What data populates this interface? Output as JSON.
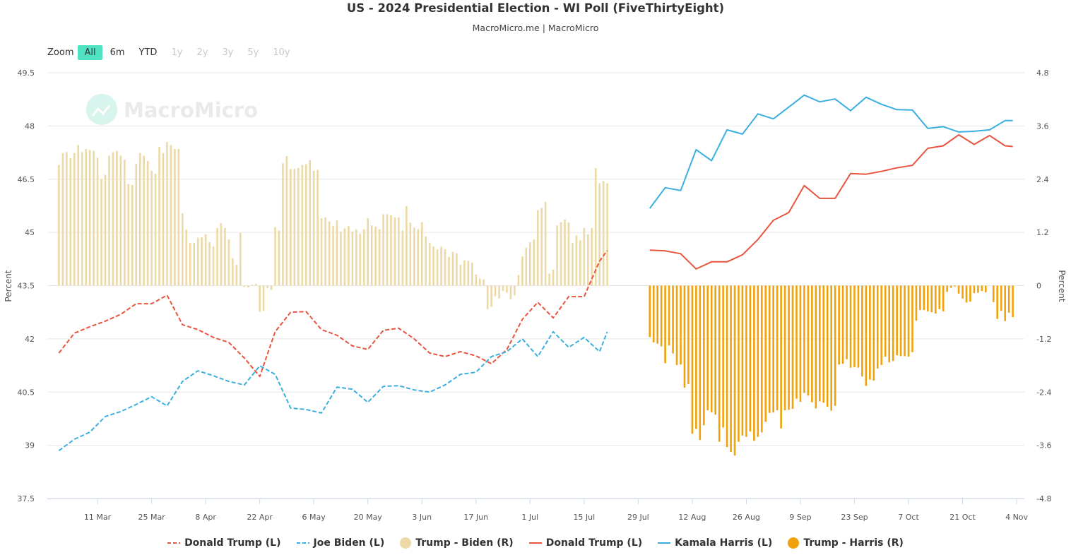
{
  "header": {
    "title": "US - 2024 Presidential Election - WI Poll (FiveThirtyEight)",
    "subtitle": "MacroMicro.me | MacroMicro",
    "watermark": "MacroMicro"
  },
  "zoom": {
    "label": "Zoom",
    "buttons": [
      {
        "label": "All",
        "state": "active"
      },
      {
        "label": "6m",
        "state": "enabled"
      },
      {
        "label": "YTD",
        "state": "enabled"
      },
      {
        "label": "1y",
        "state": "disabled"
      },
      {
        "label": "2y",
        "state": "disabled"
      },
      {
        "label": "3y",
        "state": "disabled"
      },
      {
        "label": "5y",
        "state": "disabled"
      },
      {
        "label": "10y",
        "state": "disabled"
      }
    ]
  },
  "chart_data": {
    "type": "line+bar",
    "title": "US - 2024 Presidential Election - WI Poll (FiveThirtyEight)",
    "grid": true,
    "legend": "bottom",
    "x_axis": {
      "type": "date",
      "range": [
        "2024-02-27",
        "2024-11-06"
      ],
      "ticks": [
        {
          "date": "2024-03-11",
          "label": "11 Mar"
        },
        {
          "date": "2024-03-25",
          "label": "25 Mar"
        },
        {
          "date": "2024-04-08",
          "label": "8 Apr"
        },
        {
          "date": "2024-04-22",
          "label": "22 Apr"
        },
        {
          "date": "2024-05-06",
          "label": "6 May"
        },
        {
          "date": "2024-05-20",
          "label": "20 May"
        },
        {
          "date": "2024-06-03",
          "label": "3 Jun"
        },
        {
          "date": "2024-06-17",
          "label": "17 Jun"
        },
        {
          "date": "2024-07-01",
          "label": "1 Jul"
        },
        {
          "date": "2024-07-15",
          "label": "15 Jul"
        },
        {
          "date": "2024-07-29",
          "label": "29 Jul"
        },
        {
          "date": "2024-08-12",
          "label": "12 Aug"
        },
        {
          "date": "2024-08-26",
          "label": "26 Aug"
        },
        {
          "date": "2024-09-09",
          "label": "9 Sep"
        },
        {
          "date": "2024-09-23",
          "label": "23 Sep"
        },
        {
          "date": "2024-10-07",
          "label": "7 Oct"
        },
        {
          "date": "2024-10-21",
          "label": "21 Oct"
        },
        {
          "date": "2024-11-04",
          "label": "4 Nov"
        }
      ]
    },
    "y_left": {
      "label": "Percent",
      "range": [
        37.5,
        49.5
      ],
      "ticks": [
        "37.5",
        "39",
        "40.5",
        "42",
        "43.5",
        "45",
        "46.5",
        "48",
        "49.5"
      ]
    },
    "y_right": {
      "label": "Percent",
      "range": [
        -4.8,
        4.8
      ],
      "ticks": [
        "-4.8",
        "-3.6",
        "-2.4",
        "-1.2",
        "0",
        "1.2",
        "2.4",
        "3.6",
        "4.8"
      ]
    },
    "series": [
      {
        "name": "Donald Trump (L)",
        "type": "line",
        "style": "dashed",
        "axis": "left",
        "color": "#e8543f",
        "dates": [
          "2024-03-01",
          "2024-03-05",
          "2024-03-09",
          "2024-03-13",
          "2024-03-17",
          "2024-03-21",
          "2024-03-25",
          "2024-03-29",
          "2024-04-02",
          "2024-04-06",
          "2024-04-10",
          "2024-04-14",
          "2024-04-18",
          "2024-04-22",
          "2024-04-26",
          "2024-04-30",
          "2024-05-04",
          "2024-05-08",
          "2024-05-12",
          "2024-05-16",
          "2024-05-20",
          "2024-05-24",
          "2024-05-28",
          "2024-06-01",
          "2024-06-05",
          "2024-06-09",
          "2024-06-13",
          "2024-06-17",
          "2024-06-21",
          "2024-06-25",
          "2024-06-29",
          "2024-07-03",
          "2024-07-07",
          "2024-07-11",
          "2024-07-15",
          "2024-07-19",
          "2024-07-21"
        ],
        "values": [
          41.6,
          42.16,
          42.34,
          42.5,
          42.69,
          42.99,
          42.99,
          43.23,
          42.4,
          42.26,
          42.04,
          41.9,
          41.46,
          40.94,
          42.2,
          42.75,
          42.77,
          42.26,
          42.1,
          41.8,
          41.7,
          42.24,
          42.3,
          42.0,
          41.6,
          41.5,
          41.64,
          41.52,
          41.3,
          41.7,
          42.55,
          43.03,
          42.59,
          43.19,
          43.19,
          44.19,
          44.49
        ]
      },
      {
        "name": "Joe Biden (L)",
        "type": "line",
        "style": "dashed",
        "axis": "left",
        "color": "#3aafdf",
        "dates": [
          "2024-03-01",
          "2024-03-05",
          "2024-03-09",
          "2024-03-13",
          "2024-03-17",
          "2024-03-21",
          "2024-03-25",
          "2024-03-29",
          "2024-04-02",
          "2024-04-06",
          "2024-04-10",
          "2024-04-14",
          "2024-04-18",
          "2024-04-22",
          "2024-04-26",
          "2024-04-30",
          "2024-05-04",
          "2024-05-08",
          "2024-05-12",
          "2024-05-16",
          "2024-05-20",
          "2024-05-24",
          "2024-05-28",
          "2024-06-01",
          "2024-06-05",
          "2024-06-09",
          "2024-06-13",
          "2024-06-17",
          "2024-06-21",
          "2024-06-25",
          "2024-06-29",
          "2024-07-03",
          "2024-07-07",
          "2024-07-11",
          "2024-07-15",
          "2024-07-19",
          "2024-07-21"
        ],
        "values": [
          38.85,
          39.17,
          39.37,
          39.81,
          39.95,
          40.15,
          40.37,
          40.11,
          40.8,
          41.1,
          40.96,
          40.8,
          40.7,
          41.24,
          41.0,
          40.05,
          40.01,
          39.91,
          40.64,
          40.58,
          40.21,
          40.66,
          40.68,
          40.56,
          40.5,
          40.7,
          41.0,
          41.06,
          41.5,
          41.64,
          42.0,
          41.5,
          42.2,
          41.76,
          42.04,
          41.64,
          42.2
        ]
      },
      {
        "name": "Trump - Biden (R)",
        "type": "bar",
        "axis": "right",
        "color": "#ecd9a6",
        "first_date": "2024-03-01",
        "last_date": "2024-07-21",
        "frequency": "daily",
        "values": [
          2.72,
          2.99,
          3.01,
          2.87,
          2.99,
          3.17,
          3.01,
          3.08,
          3.06,
          3.04,
          2.88,
          2.4,
          2.5,
          2.93,
          3.01,
          3.04,
          2.93,
          2.84,
          2.29,
          2.27,
          2.75,
          2.99,
          2.93,
          2.81,
          2.59,
          2.52,
          3.13,
          2.99,
          3.24,
          3.17,
          3.08,
          3.08,
          1.63,
          1.26,
          0.96,
          0.96,
          1.08,
          1.09,
          1.16,
          0.98,
          0.88,
          1.3,
          1.41,
          1.3,
          1.04,
          0.62,
          0.47,
          1.19,
          -0.03,
          -0.04,
          0.02,
          0.04,
          -0.59,
          -0.57,
          -0.06,
          -0.1,
          1.32,
          1.24,
          2.76,
          2.92,
          2.63,
          2.63,
          2.65,
          2.72,
          2.74,
          2.83,
          2.59,
          2.61,
          1.52,
          1.54,
          1.45,
          1.34,
          1.47,
          1.22,
          1.29,
          1.34,
          1.22,
          1.27,
          1.17,
          1.27,
          1.52,
          1.36,
          1.33,
          1.27,
          1.61,
          1.61,
          1.59,
          1.54,
          1.54,
          1.24,
          1.79,
          1.42,
          1.31,
          1.27,
          1.43,
          1.11,
          0.97,
          0.88,
          0.82,
          0.88,
          0.82,
          0.65,
          0.76,
          0.73,
          0.47,
          0.57,
          0.56,
          0.52,
          0.25,
          0.16,
          0.14,
          -0.53,
          -0.48,
          -0.24,
          -0.29,
          -0.12,
          -0.16,
          -0.31,
          -0.22,
          0.24,
          0.66,
          0.86,
          0.98,
          1.04,
          1.7,
          1.75,
          1.89,
          0.27,
          0.36,
          1.36,
          1.43,
          1.49,
          1.42,
          0.96,
          1.13,
          1.02,
          1.3,
          1.16,
          1.3,
          2.65,
          2.31,
          2.36,
          2.31
        ]
      },
      {
        "name": "Donald Trump (L)",
        "type": "line",
        "style": "solid",
        "axis": "left",
        "color": "#e8543f",
        "dates": [
          "2024-08-01",
          "2024-08-05",
          "2024-08-09",
          "2024-08-13",
          "2024-08-17",
          "2024-08-21",
          "2024-08-25",
          "2024-08-29",
          "2024-09-02",
          "2024-09-06",
          "2024-09-10",
          "2024-09-14",
          "2024-09-18",
          "2024-09-22",
          "2024-09-26",
          "2024-09-30",
          "2024-10-04",
          "2024-10-08",
          "2024-10-12",
          "2024-10-16",
          "2024-10-20",
          "2024-10-24",
          "2024-10-28",
          "2024-11-01",
          "2024-11-03"
        ],
        "values": [
          44.5,
          44.48,
          44.4,
          43.97,
          44.17,
          44.17,
          44.37,
          44.8,
          45.34,
          45.56,
          46.32,
          45.96,
          45.96,
          46.66,
          46.64,
          46.72,
          46.82,
          46.89,
          47.37,
          47.44,
          47.75,
          47.48,
          47.73,
          47.44,
          47.42
        ]
      },
      {
        "name": "Kamala Harris (L)",
        "type": "line",
        "style": "solid",
        "axis": "left",
        "color": "#3aafdf",
        "dates": [
          "2024-08-01",
          "2024-08-05",
          "2024-08-09",
          "2024-08-13",
          "2024-08-17",
          "2024-08-21",
          "2024-08-25",
          "2024-08-29",
          "2024-09-02",
          "2024-09-06",
          "2024-09-10",
          "2024-09-14",
          "2024-09-18",
          "2024-09-22",
          "2024-09-26",
          "2024-09-30",
          "2024-10-04",
          "2024-10-08",
          "2024-10-12",
          "2024-10-16",
          "2024-10-20",
          "2024-10-24",
          "2024-10-28",
          "2024-11-01",
          "2024-11-03"
        ],
        "values": [
          45.68,
          46.26,
          46.18,
          47.33,
          47.02,
          47.89,
          47.77,
          48.34,
          48.2,
          48.53,
          48.87,
          48.68,
          48.76,
          48.43,
          48.81,
          48.61,
          48.46,
          48.45,
          47.93,
          47.98,
          47.83,
          47.85,
          47.89,
          48.15,
          48.15
        ]
      },
      {
        "name": "Trump - Harris (R)",
        "type": "bar",
        "axis": "right",
        "color": "#f0a20a",
        "first_date": "2024-08-01",
        "last_date": "2024-11-03",
        "frequency": "daily",
        "values": [
          -1.16,
          -1.28,
          -1.31,
          -1.37,
          -1.75,
          -1.35,
          -1.53,
          -1.79,
          -1.78,
          -2.3,
          -2.22,
          -3.34,
          -3.23,
          -3.48,
          -3.15,
          -2.81,
          -2.86,
          -2.91,
          -3.52,
          -3.2,
          -3.64,
          -3.75,
          -3.83,
          -3.52,
          -3.38,
          -3.41,
          -3.29,
          -3.5,
          -3.41,
          -3.31,
          -3.07,
          -2.87,
          -2.86,
          -2.81,
          -3.22,
          -2.81,
          -2.8,
          -2.78,
          -2.55,
          -2.62,
          -2.42,
          -2.48,
          -2.63,
          -2.77,
          -2.61,
          -2.64,
          -2.73,
          -2.82,
          -2.71,
          -1.78,
          -1.76,
          -1.66,
          -1.85,
          -1.84,
          -1.85,
          -2.05,
          -2.26,
          -2.12,
          -2.14,
          -1.87,
          -1.79,
          -1.6,
          -1.73,
          -1.7,
          -1.57,
          -1.59,
          -1.59,
          -1.6,
          -1.5,
          -0.79,
          -0.55,
          -0.55,
          -0.58,
          -0.6,
          -0.63,
          -0.53,
          -0.58,
          -0.14,
          -0.05,
          -0.02,
          -0.18,
          -0.29,
          -0.38,
          -0.36,
          -0.17,
          -0.16,
          -0.12,
          -0.15,
          null,
          -0.37,
          -0.75,
          -0.57,
          -0.8,
          -0.61,
          -0.71
        ]
      }
    ]
  }
}
